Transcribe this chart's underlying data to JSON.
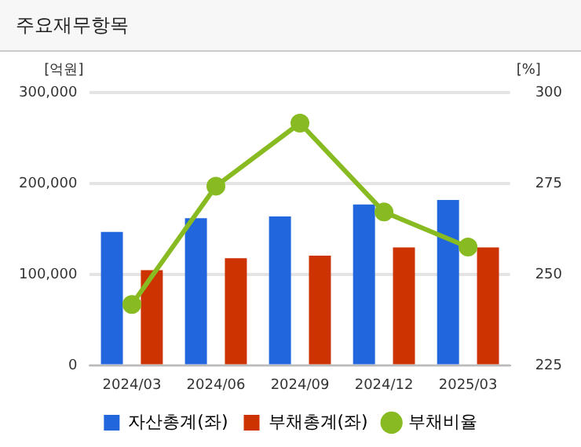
{
  "chart_data": {
    "type": "bar",
    "title": "주요재무항목",
    "ylabel": "[억원]",
    "y2label": "[%]",
    "categories": [
      "2024/03",
      "2024/06",
      "2024/09",
      "2024/12",
      "2025/03"
    ],
    "series": [
      {
        "name": "자산총계(좌)",
        "color": "#2266dd",
        "values": [
          147000,
          162000,
          164000,
          177000,
          182000
        ]
      },
      {
        "name": "부채총계(좌)",
        "color": "#cc3300",
        "values": [
          105000,
          118000,
          121000,
          130000,
          130000
        ]
      },
      {
        "name": "부채비율",
        "type": "line",
        "axis": "y2",
        "color": "#88bb22",
        "values": [
          241.8,
          274.3,
          291.6,
          267.2,
          257.6
        ]
      }
    ],
    "ylim": [
      0,
      300000
    ],
    "yticks": [
      {
        "value": 0,
        "label": "0"
      },
      {
        "value": 100000,
        "label": "100,000"
      },
      {
        "value": 200000,
        "label": "200,000"
      },
      {
        "value": 300000,
        "label": "300,000"
      }
    ],
    "y2lim": [
      225,
      300
    ],
    "y2ticks": [
      225,
      250,
      275,
      300
    ],
    "grid": "y",
    "legend": "bottom",
    "marker": "circle"
  }
}
